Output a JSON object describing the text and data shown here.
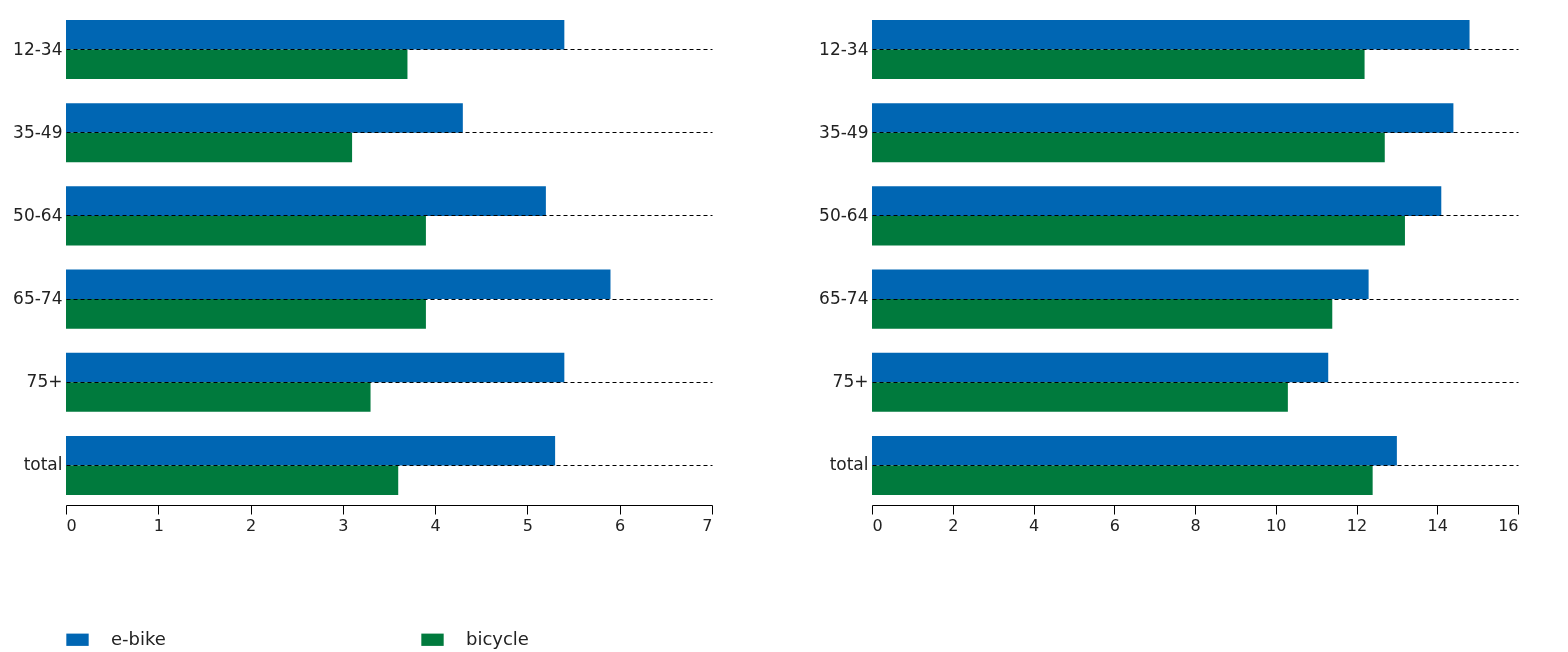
{
  "chart_data": [
    {
      "type": "bar",
      "orientation": "horizontal",
      "categories": [
        "12-34",
        "35-49",
        "50-64",
        "65-74",
        "75+",
        "total"
      ],
      "xlim": [
        0,
        7
      ],
      "xticks": [
        0,
        1,
        2,
        3,
        4,
        5,
        6,
        7
      ],
      "grid": "y",
      "legend": "bottom",
      "series": [
        {
          "name": "e-bike",
          "color": "#0066b3",
          "values": [
            5.4,
            4.3,
            5.2,
            5.9,
            5.4,
            5.3
          ]
        },
        {
          "name": "bicycle",
          "color": "#007a3d",
          "values": [
            3.7,
            3.1,
            3.9,
            3.9,
            3.3,
            3.6
          ]
        }
      ]
    },
    {
      "type": "bar",
      "orientation": "horizontal",
      "categories": [
        "12-34",
        "35-49",
        "50-64",
        "65-74",
        "75+",
        "total"
      ],
      "xlim": [
        0,
        16
      ],
      "xticks": [
        0,
        2,
        4,
        6,
        8,
        10,
        12,
        14,
        16
      ],
      "grid": "y",
      "series": [
        {
          "name": "e-bike",
          "color": "#0066b3",
          "values": [
            14.8,
            14.4,
            14.1,
            12.3,
            11.3,
            13.0
          ]
        },
        {
          "name": "bicycle",
          "color": "#007a3d",
          "values": [
            12.2,
            12.7,
            13.2,
            11.4,
            10.3,
            12.4
          ]
        }
      ]
    }
  ]
}
